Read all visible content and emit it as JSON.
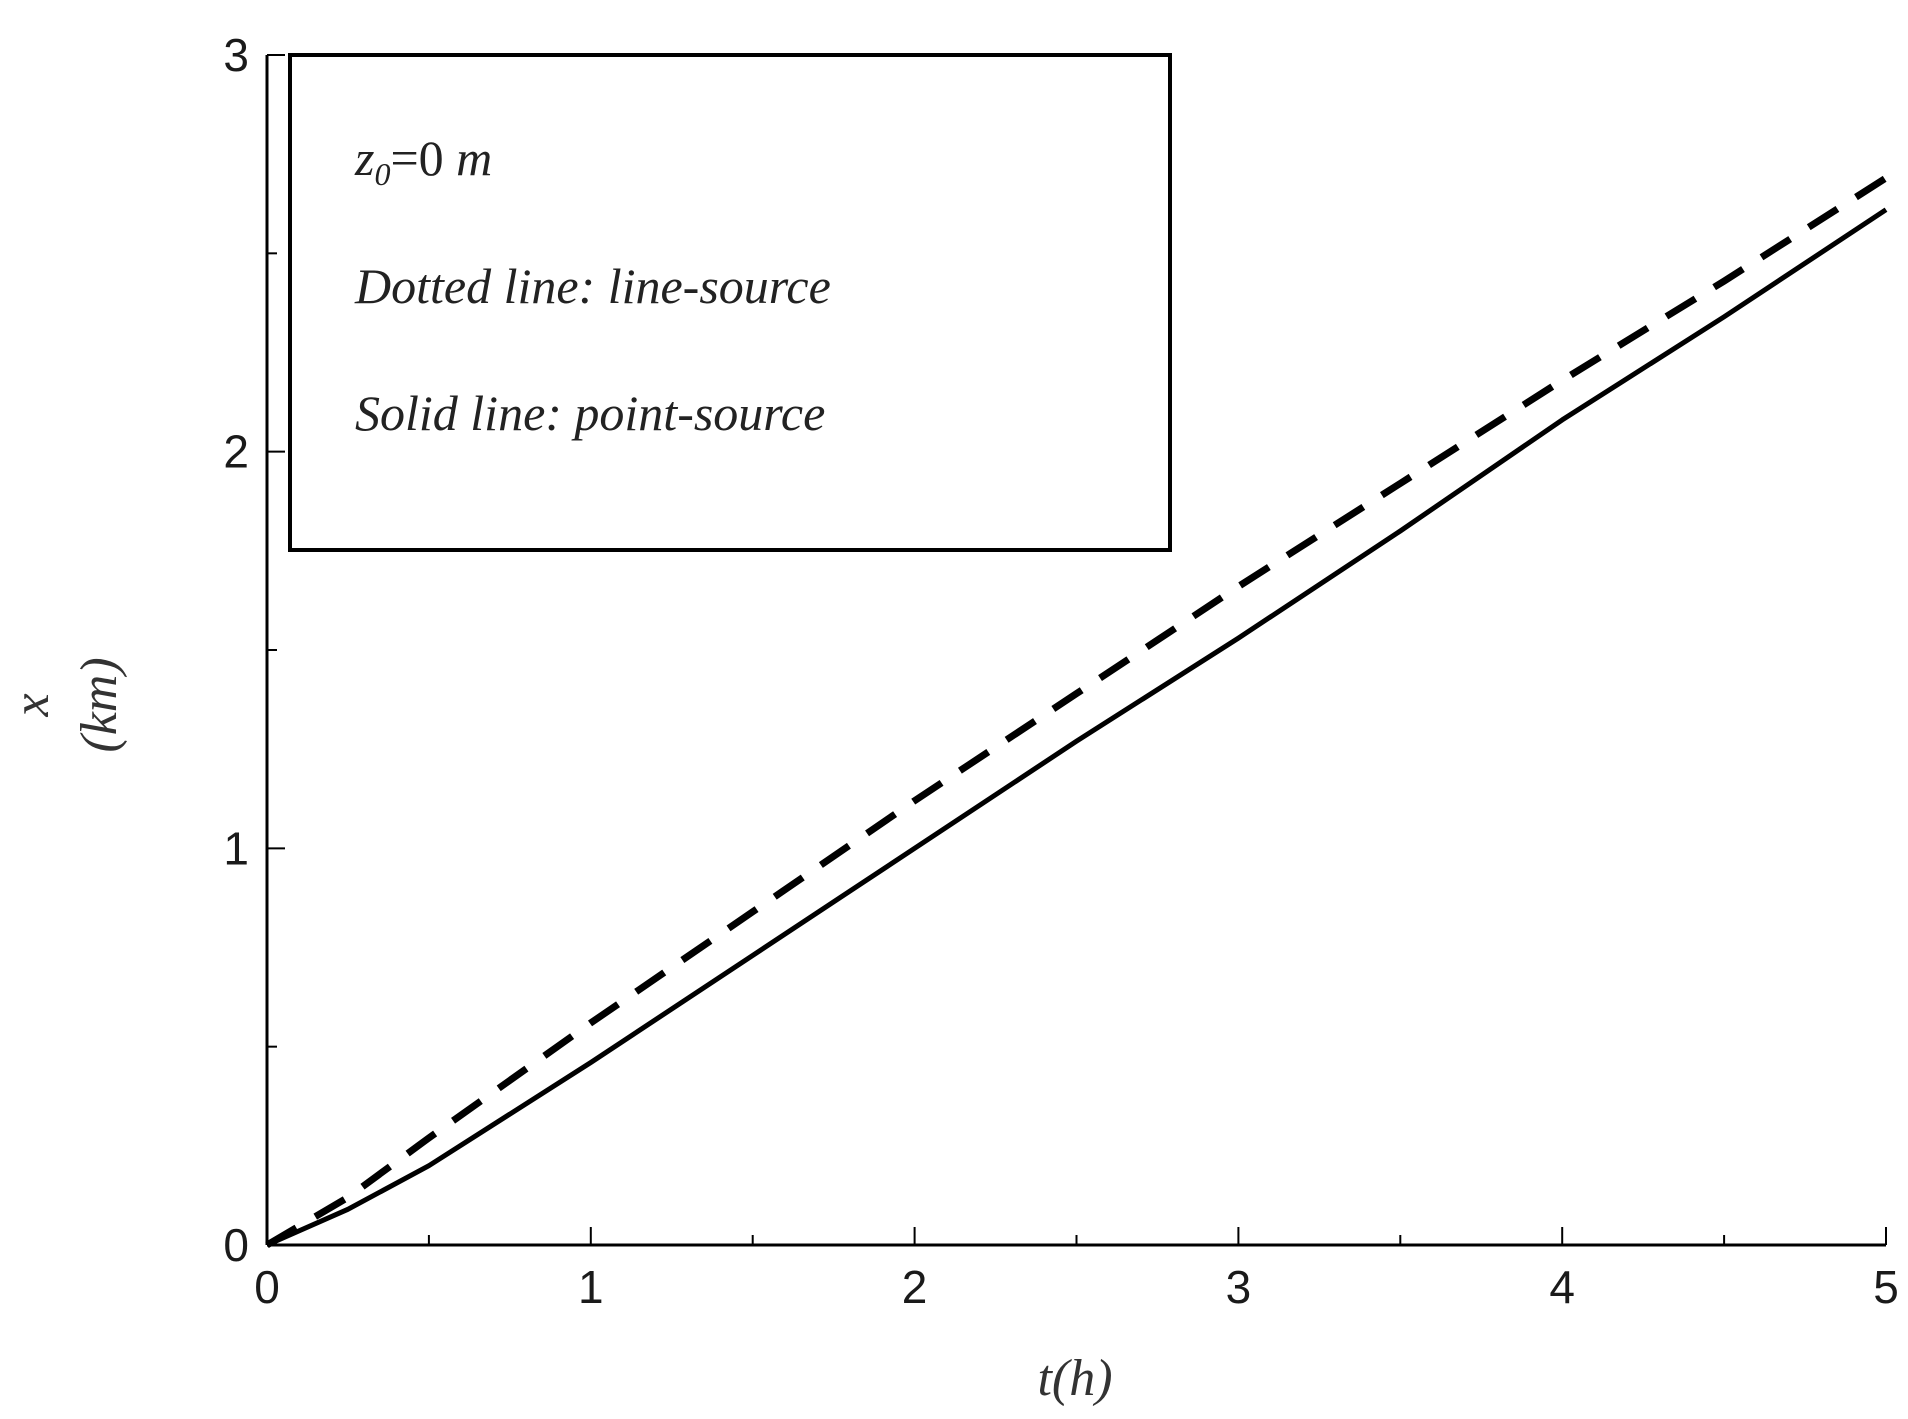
{
  "chart_data": {
    "type": "line",
    "title": "",
    "xlabel": "t(h)",
    "ylabel_line1": "x",
    "ylabel_line2": "(km)",
    "xlim": [
      0,
      5
    ],
    "ylim": [
      0,
      3
    ],
    "x_ticks": [
      "0",
      "1",
      "2",
      "3",
      "4",
      "5"
    ],
    "y_ticks": [
      "0",
      "1",
      "2",
      "3"
    ],
    "grid": false,
    "legend_position": "top-left",
    "annotation": {
      "label_z": "z",
      "label_sub": "0",
      "label_eq": "=0 ",
      "label_unit": "m",
      "dotted_label": "Dotted line: line-source",
      "solid_label": "Solid line: point-source"
    },
    "series": [
      {
        "style": "dashed",
        "color": "#000000",
        "x": [
          0,
          0.25,
          0.5,
          1.0,
          1.5,
          2.0,
          2.5,
          3.0,
          3.5,
          4.0,
          4.5,
          5.0
        ],
        "y": [
          0,
          0.12,
          0.27,
          0.56,
          0.84,
          1.12,
          1.39,
          1.66,
          1.92,
          2.18,
          2.43,
          2.69
        ]
      },
      {
        "style": "solid",
        "color": "#000000",
        "x": [
          0,
          0.25,
          0.5,
          1.0,
          1.5,
          2.0,
          2.5,
          3.0,
          3.5,
          4.0,
          4.5,
          5.0
        ],
        "y": [
          0,
          0.09,
          0.2,
          0.46,
          0.73,
          1.0,
          1.27,
          1.53,
          1.8,
          2.08,
          2.34,
          2.61
        ]
      }
    ]
  }
}
